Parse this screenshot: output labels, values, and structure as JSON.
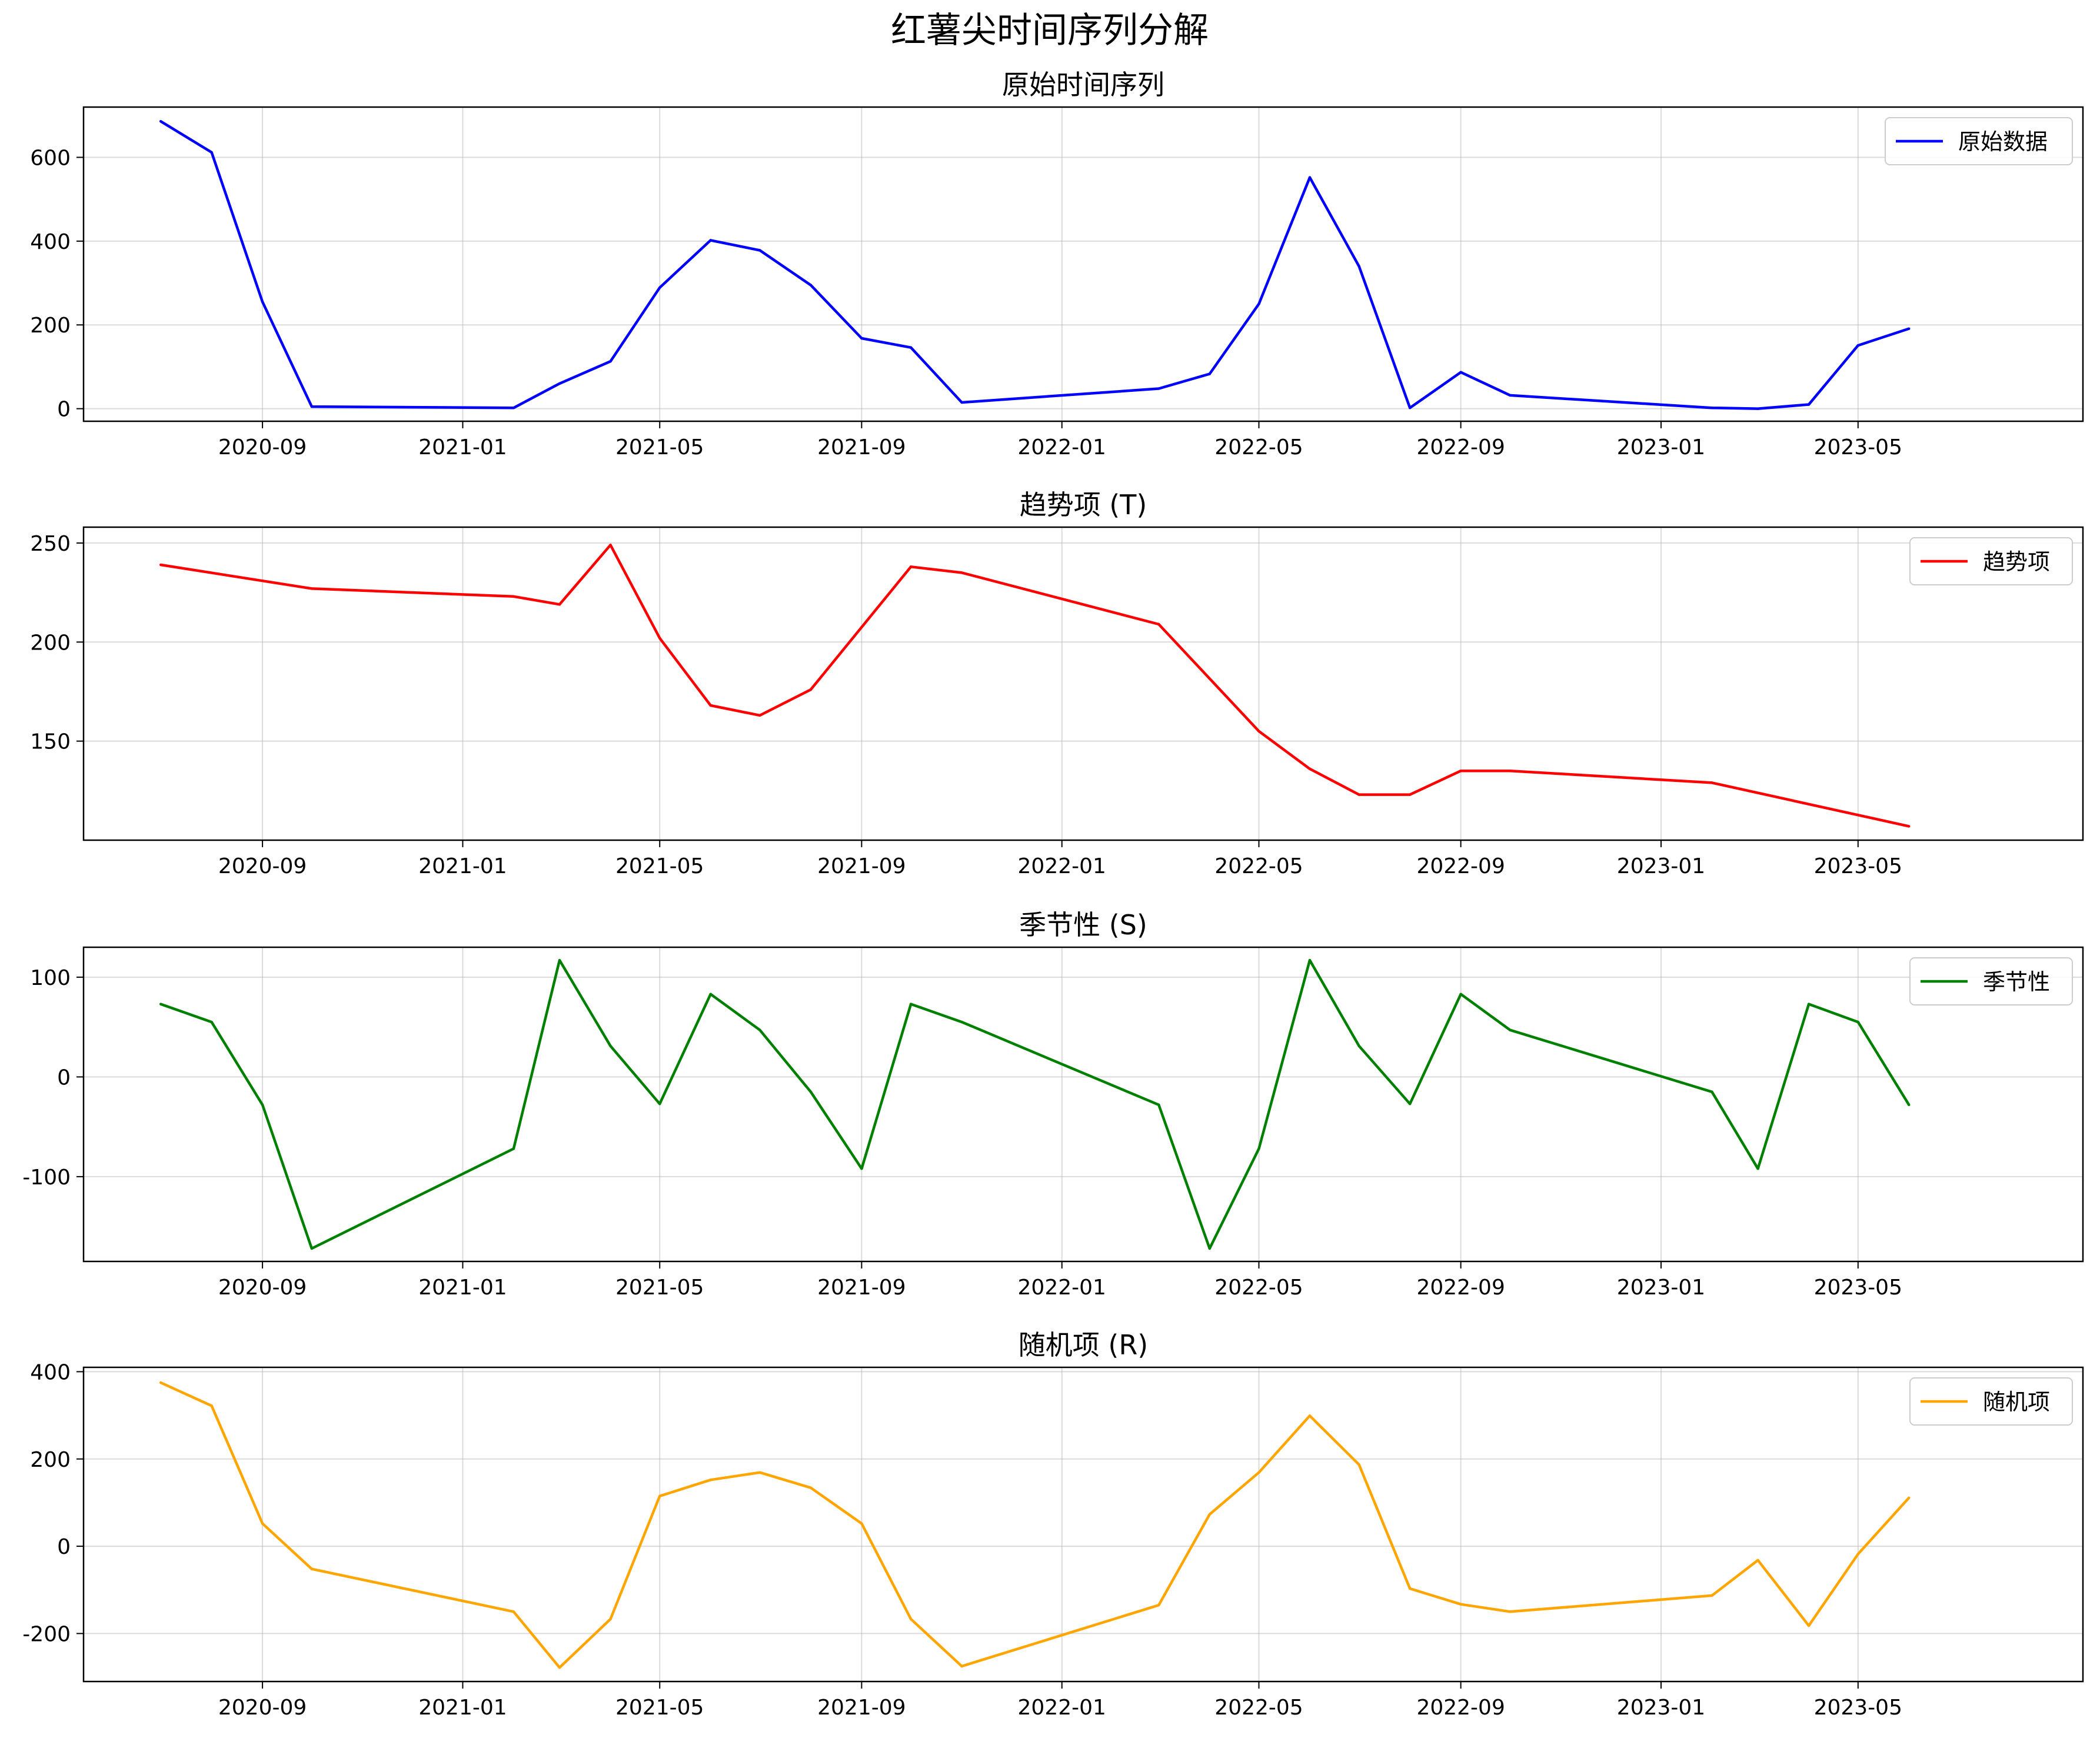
{
  "figure": {
    "title": "红薯尖时间序列分解"
  },
  "chart_data": [
    {
      "type": "line",
      "title": "原始时间序列",
      "xlabel": "",
      "ylabel": "",
      "ylim": [
        -30,
        720
      ],
      "yticks": [
        0,
        200,
        400,
        600
      ],
      "grid": true,
      "legend_position": "top-right",
      "color": "#0000ff",
      "series": [
        {
          "name": "原始数据",
          "x": [
            "2020-07",
            "2020-08",
            "2020-09",
            "2020-10",
            "2021-02",
            "2021-03",
            "2021-04",
            "2021-05",
            "2021-06",
            "2021-07",
            "2021-08",
            "2021-09",
            "2021-10",
            "2021-11",
            "2022-03",
            "2022-04",
            "2022-05",
            "2022-06",
            "2022-07",
            "2022-08",
            "2022-09",
            "2022-10",
            "2023-02",
            "2023-03",
            "2023-04",
            "2023-05",
            "2023-06"
          ],
          "values": [
            686,
            612,
            255,
            5,
            2,
            60,
            113,
            289,
            402,
            378,
            295,
            168,
            146,
            15,
            48,
            83,
            250,
            552,
            340,
            2,
            87,
            32,
            2,
            0,
            10,
            151,
            191
          ]
        }
      ]
    },
    {
      "type": "line",
      "title": "趋势项 (T)",
      "xlabel": "",
      "ylabel": "",
      "ylim": [
        100,
        258
      ],
      "yticks": [
        150,
        200,
        250
      ],
      "grid": true,
      "legend_position": "top-right",
      "color": "#ff0000",
      "series": [
        {
          "name": "趋势项",
          "x": [
            "2020-07",
            "2020-10",
            "2021-02",
            "2021-03",
            "2021-04",
            "2021-05",
            "2021-06",
            "2021-07",
            "2021-08",
            "2021-10",
            "2021-11",
            "2022-03",
            "2022-05",
            "2022-06",
            "2022-07",
            "2022-08",
            "2022-09",
            "2022-10",
            "2023-02",
            "2023-06"
          ],
          "values": [
            239,
            227,
            223,
            219,
            249,
            202,
            168,
            163,
            176,
            238,
            235,
            209,
            155,
            136,
            123,
            123,
            135,
            135,
            129,
            107
          ]
        }
      ]
    },
    {
      "type": "line",
      "title": "季节性 (S)",
      "xlabel": "",
      "ylabel": "",
      "ylim": [
        -185,
        130
      ],
      "yticks": [
        -100,
        0,
        100
      ],
      "grid": true,
      "legend_position": "top-right",
      "color": "#008000",
      "series": [
        {
          "name": "季节性",
          "x": [
            "2020-07",
            "2020-08",
            "2020-09",
            "2020-10",
            "2021-02",
            "2021-03",
            "2021-04",
            "2021-05",
            "2021-06",
            "2021-07",
            "2021-08",
            "2021-09",
            "2021-10",
            "2021-11",
            "2022-03",
            "2022-04",
            "2022-05",
            "2022-06",
            "2022-07",
            "2022-08",
            "2022-09",
            "2022-10",
            "2023-02",
            "2023-03",
            "2023-04",
            "2023-05",
            "2023-06"
          ],
          "values": [
            73,
            55,
            -28,
            -172,
            -72,
            117,
            31,
            -27,
            83,
            47,
            -15,
            -92,
            73,
            55,
            -28,
            -172,
            -72,
            117,
            31,
            -27,
            83,
            47,
            -15,
            -92,
            73,
            55,
            -28
          ]
        }
      ]
    },
    {
      "type": "line",
      "title": "随机项 (R)",
      "xlabel": "",
      "ylabel": "",
      "ylim": [
        -310,
        410
      ],
      "yticks": [
        -200,
        0,
        200,
        400
      ],
      "grid": true,
      "legend_position": "top-right",
      "color": "#ffa500",
      "series": [
        {
          "name": "随机项",
          "x": [
            "2020-07",
            "2020-08",
            "2020-09",
            "2020-10",
            "2021-02",
            "2021-03",
            "2021-04",
            "2021-05",
            "2021-06",
            "2021-07",
            "2021-08",
            "2021-09",
            "2021-10",
            "2021-11",
            "2022-03",
            "2022-04",
            "2022-05",
            "2022-06",
            "2022-07",
            "2022-08",
            "2022-09",
            "2022-10",
            "2023-02",
            "2023-03",
            "2023-04",
            "2023-05",
            "2023-06"
          ],
          "values": [
            375,
            322,
            52,
            -52,
            -150,
            -278,
            -167,
            115,
            152,
            169,
            134,
            52,
            -167,
            -275,
            -135,
            73,
            169,
            299,
            187,
            -97,
            -133,
            -150,
            -113,
            -32,
            -182,
            -18,
            111
          ]
        }
      ]
    }
  ],
  "x_axis": {
    "range": [
      "2020-05-15",
      "2023-09-15"
    ],
    "ticks": [
      "2020-09",
      "2021-01",
      "2021-05",
      "2021-09",
      "2022-01",
      "2022-05",
      "2022-09",
      "2023-01",
      "2023-05"
    ]
  }
}
